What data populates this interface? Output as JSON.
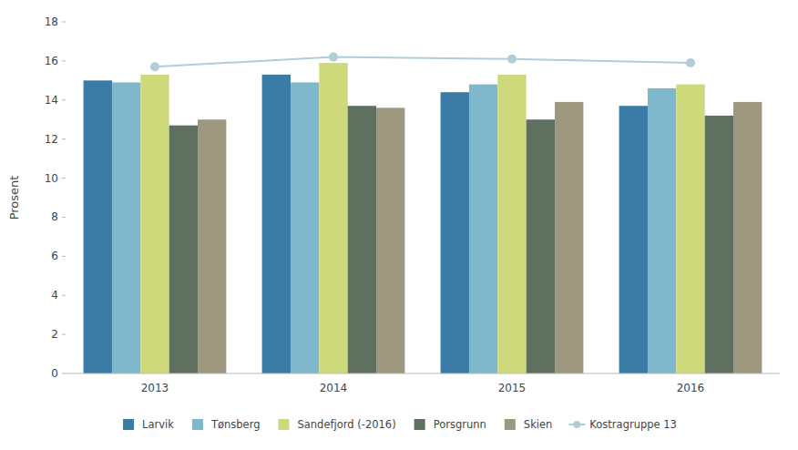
{
  "chart_data": {
    "type": "bar",
    "y_label": "Prosent",
    "categories": [
      "2013",
      "2014",
      "2015",
      "2016"
    ],
    "series": [
      {
        "name": "Larvik",
        "color": "#3a7ca5",
        "values": [
          15.0,
          15.3,
          14.4,
          13.7
        ]
      },
      {
        "name": "Tønsberg",
        "color": "#7fb8cc",
        "values": [
          14.9,
          14.9,
          14.8,
          14.6
        ]
      },
      {
        "name": "Sandefjord (-2016)",
        "color": "#cdd97a",
        "values": [
          15.3,
          15.9,
          15.3,
          14.8
        ]
      },
      {
        "name": "Porsgrunn",
        "color": "#607060",
        "values": [
          12.7,
          13.7,
          13.0,
          13.2
        ]
      },
      {
        "name": "Skien",
        "color": "#9e9880",
        "values": [
          13.0,
          13.6,
          13.9,
          13.9
        ]
      },
      {
        "name": "Kostragruppe 13",
        "type": "line",
        "color": "#b0cdd8",
        "marker": "circle",
        "values": [
          15.7,
          16.2,
          16.1,
          15.9
        ]
      }
    ],
    "ylim": [
      0,
      18
    ],
    "yticks": [
      0,
      2,
      4,
      6,
      8,
      10,
      12,
      14,
      16,
      18
    ],
    "grid": false,
    "legend": "bottom"
  }
}
